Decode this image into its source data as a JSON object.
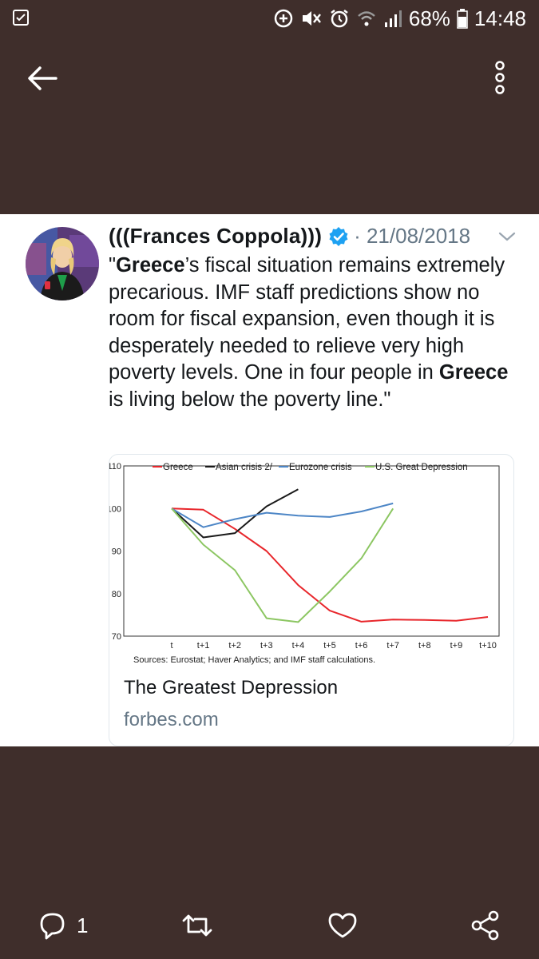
{
  "status_bar": {
    "battery_percent": "68%",
    "time": "14:48",
    "icons": [
      "notification-icon",
      "data-saver-icon",
      "mute-icon",
      "alarm-icon",
      "wifi-icon",
      "signal-icon",
      "battery-icon"
    ]
  },
  "tweet": {
    "author": "(((Frances Coppola)))",
    "date": "· 21/08/2018",
    "text_segments": [
      {
        "text": "\"",
        "bold": false
      },
      {
        "text": "Greece",
        "bold": true
      },
      {
        "text": "’s fiscal situation remains extremely precarious. IMF staff predictions show no room for fiscal expansion, even though it is desperately needed to relieve very high poverty levels. One in four people in ",
        "bold": false
      },
      {
        "text": "Greece",
        "bold": true
      },
      {
        "text": " is living below the poverty line.\"",
        "bold": false
      }
    ],
    "link_card": {
      "title": "The Greatest Depression",
      "domain": "forbes.com"
    },
    "actions": {
      "reply_count": "1"
    }
  },
  "colors": {
    "background": "#3f2e2b",
    "greece": "#e8262b",
    "asian_crisis": "#1a1a1a",
    "eurozone": "#4d86c6",
    "us_depression": "#8cc662"
  },
  "chart_data": {
    "type": "line",
    "x": [
      "t",
      "t+1",
      "t+2",
      "t+3",
      "t+4",
      "t+5",
      "t+6",
      "t+7",
      "t+8",
      "t+9",
      "t+10"
    ],
    "ylim": [
      70,
      110
    ],
    "yticks": [
      70,
      80,
      90,
      100,
      110
    ],
    "legend_position": "top",
    "grid": false,
    "series": [
      {
        "name": "Greece",
        "color": "#e8262b",
        "values": [
          100,
          99.7,
          95.2,
          90,
          82,
          76,
          73.4,
          73.9,
          73.8,
          73.6,
          74.5
        ]
      },
      {
        "name": "Asian crisis 2/",
        "color": "#1a1a1a",
        "values": [
          100,
          93.2,
          94.2,
          100.5,
          104.5,
          null,
          null,
          null,
          null,
          null,
          null
        ]
      },
      {
        "name": "Eurozone crisis",
        "color": "#4d86c6",
        "values": [
          100,
          95.6,
          97.5,
          99,
          98.3,
          98,
          99.3,
          101.2,
          null,
          null,
          null
        ]
      },
      {
        "name": "U.S. Great Depression",
        "color": "#8cc662",
        "values": [
          100,
          91.5,
          85.5,
          74.2,
          73.3,
          80.5,
          88.3,
          100,
          null,
          null,
          null
        ]
      }
    ],
    "source": "Sources: Eurostat; Haver Analytics; and IMF staff calculations."
  }
}
